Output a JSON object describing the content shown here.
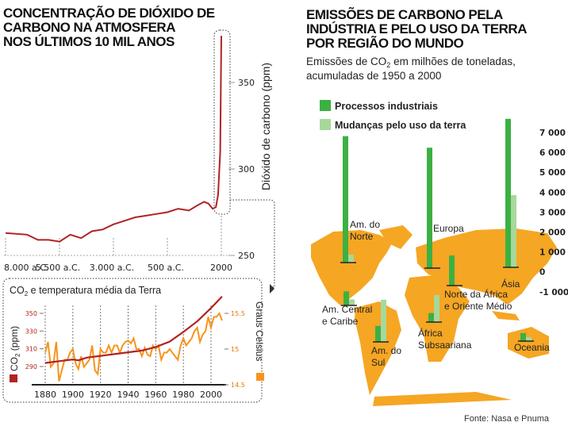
{
  "colors": {
    "co2_line": "#b22222",
    "temperature_line": "#f7941d",
    "industrial": "#3cb043",
    "land_use": "#a6d89b",
    "map": "#f5a623"
  },
  "chart_data": [
    {
      "type": "line",
      "title": "CONCENTRAÇÃO DE DIÓXIDO DE CARBONO NA ATMOSFERA NOS ÚLTIMOS 10 MIL ANOS",
      "title_lines": [
        "CONCENTRAÇÃO DE DIÓXIDO DE",
        "CARBONO NA ATMOSFERA",
        "NOS ÚLTIMOS 10 MIL ANOS"
      ],
      "ylabel": "Dióxido de carbono (ppm)",
      "x_tick_labels": [
        "8.000 a.C.",
        "5.500 a.C.",
        "3.000 a.C.",
        "500 a.C.",
        "2000"
      ],
      "x_ticks": [
        -8000,
        -5500,
        -3000,
        -500,
        2000
      ],
      "y_ticks": [
        250,
        300,
        350
      ],
      "ylim": [
        250,
        385
      ],
      "xlim": [
        -8000,
        2000
      ],
      "series": [
        {
          "x": [
            -8000,
            -7000,
            -6500,
            -6000,
            -5500,
            -5000,
            -4500,
            -4000,
            -3500,
            -3000,
            -2500,
            -2000,
            -1500,
            -1000,
            -500,
            0,
            500,
            900,
            1200,
            1400,
            1600,
            1750,
            1850,
            1950,
            2000
          ],
          "y": [
            263,
            262,
            259,
            259,
            258,
            262,
            260,
            264,
            265,
            268,
            270,
            272,
            273,
            274,
            275,
            277,
            276,
            279,
            281,
            280,
            277,
            278,
            285,
            310,
            377
          ]
        }
      ]
    },
    {
      "type": "line",
      "title": "CO₂ e temperatura média da Terra",
      "title_parts": [
        "CO",
        "2",
        " e temperatura média da Terra"
      ],
      "ylabel_left_parts": [
        "CO",
        "2",
        " (ppm)"
      ],
      "ylabel_right": "Graus Celsius",
      "x_ticks": [
        1880,
        1900,
        1920,
        1940,
        1960,
        1980,
        2000
      ],
      "y_left_ticks": [
        290,
        310,
        330,
        350
      ],
      "y_right_ticks": [
        "14.5",
        "15",
        "15.5"
      ],
      "y_right_tick_labels": [
        "14.5",
        "15",
        "15.5"
      ],
      "xlim": [
        1880,
        2008
      ],
      "series": [
        {
          "name": "CO₂ (ppm)",
          "axis": "left",
          "x": [
            1880,
            1890,
            1900,
            1904,
            1910,
            1920,
            1930,
            1940,
            1950,
            1960,
            1970,
            1980,
            1990,
            2000,
            2008
          ],
          "y": [
            294,
            296,
            298,
            297,
            300,
            302,
            304,
            306,
            308,
            312,
            318,
            329,
            341,
            356,
            369
          ]
        },
        {
          "name": "Graus Celsius",
          "axis": "right",
          "x": [
            1880,
            1882,
            1884,
            1886,
            1888,
            1890,
            1892,
            1894,
            1896,
            1898,
            1900,
            1902,
            1904,
            1906,
            1908,
            1910,
            1912,
            1914,
            1916,
            1918,
            1920,
            1922,
            1924,
            1926,
            1928,
            1930,
            1932,
            1934,
            1936,
            1938,
            1940,
            1942,
            1944,
            1946,
            1948,
            1950,
            1952,
            1954,
            1956,
            1958,
            1960,
            1962,
            1964,
            1966,
            1968,
            1970,
            1972,
            1974,
            1976,
            1978,
            1980,
            1982,
            1984,
            1986,
            1988,
            1990,
            1992,
            1994,
            1996,
            1998,
            2000,
            2002,
            2004,
            2006,
            2008
          ],
          "y": [
            14.95,
            15.1,
            14.75,
            14.8,
            15.1,
            14.55,
            14.7,
            14.85,
            14.85,
            14.95,
            15.0,
            14.8,
            14.72,
            14.9,
            14.75,
            14.8,
            14.85,
            15.05,
            14.7,
            14.65,
            15.0,
            14.95,
            14.95,
            15.05,
            14.95,
            15.05,
            15.05,
            14.95,
            15.05,
            15.1,
            15.12,
            15.08,
            15.15,
            15.0,
            15.0,
            14.9,
            15.02,
            14.92,
            14.9,
            15.05,
            15.0,
            15.05,
            14.85,
            14.95,
            14.95,
            15.0,
            14.95,
            14.9,
            14.85,
            15.05,
            15.15,
            15.05,
            15.1,
            15.15,
            15.25,
            15.3,
            15.1,
            15.2,
            15.25,
            15.45,
            15.3,
            15.45,
            15.45,
            15.5,
            15.4
          ]
        }
      ]
    },
    {
      "type": "bar",
      "title_lines": [
        "EMISSÕES DE CARBONO PELA",
        "INDÚSTRIA E PELO USO DA TERRA",
        "POR REGIÃO DO MUNDO"
      ],
      "subtitle_parts": [
        "Emissões de CO",
        "2",
        " em milhões de toneladas,"
      ],
      "subtitle_line2": "acumuladas de 1950 a 2000",
      "y_ticks": [
        "7 000",
        "6 000",
        "5 000",
        "4 000",
        "3 000",
        "2 000",
        "1 000",
        "0",
        "-1 000"
      ],
      "ylim": [
        -1000,
        7000
      ],
      "legend": [
        "Processos industriais",
        "Mudanças pelo uso da terra"
      ],
      "categories": [
        {
          "label": [
            "Am. do",
            "Norte"
          ],
          "industrial": 6300,
          "land_use": 400
        },
        {
          "label": [
            "Europa"
          ],
          "industrial": 6000,
          "land_use": 0
        },
        {
          "label": [
            "Norte da África",
            "e Oriente Médio"
          ],
          "industrial": 1500,
          "land_use": 0
        },
        {
          "label": [
            "Ásia"
          ],
          "industrial": 7400,
          "land_use": 3600
        },
        {
          "label": [
            "Am. Central",
            "e Caribe"
          ],
          "industrial": 700,
          "land_use": 300
        },
        {
          "label": [
            "Am. do",
            "Sul"
          ],
          "industrial": 800,
          "land_use": 2100
        },
        {
          "label": [
            "África",
            "Subsaariana"
          ],
          "industrial": 450,
          "land_use": 1350
        },
        {
          "label": [
            "Oceania"
          ],
          "industrial": 400,
          "land_use": 200
        }
      ]
    }
  ],
  "source": "Fonte: Nasa e Pnuma"
}
